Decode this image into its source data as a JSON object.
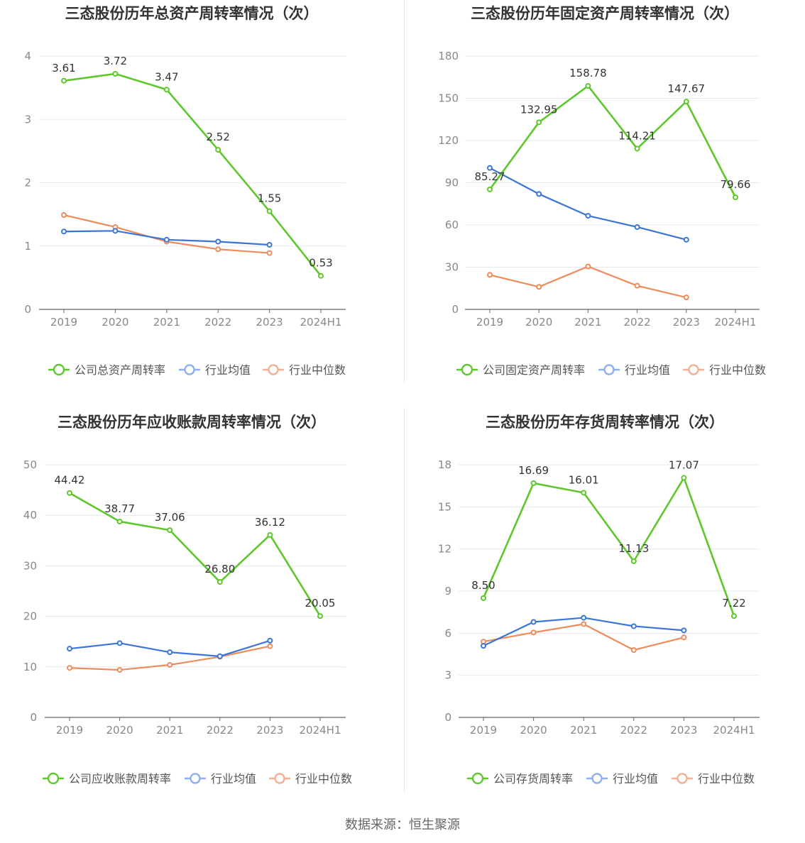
{
  "source_text": "数据来源：恒生聚源",
  "colors": {
    "company": "#5ec72b",
    "avg": "#3a75d9",
    "median": "#ef8a5a",
    "grid": "#e6e8ef",
    "axis": "#666666",
    "tick": "#888888",
    "legend_avg": "#8fb0ee",
    "legend_median": "#f4b094"
  },
  "chart_data": [
    {
      "type": "line",
      "title": "三态股份历年总资产周转率情况（次）",
      "categories": [
        "2019",
        "2020",
        "2021",
        "2022",
        "2023",
        "2024H1"
      ],
      "ylim": [
        0,
        4
      ],
      "yticks": [
        0,
        1,
        2,
        3,
        4
      ],
      "ytick_labels": [
        "0",
        "1",
        "2",
        "3",
        "4"
      ],
      "series": [
        {
          "name": "公司总资产周转率",
          "values": [
            3.61,
            3.72,
            3.47,
            2.52,
            1.55,
            0.53
          ],
          "labels": [
            "3.61",
            "3.72",
            "3.47",
            "2.52",
            "1.55",
            "0.53"
          ]
        },
        {
          "name": "行业均值",
          "values": [
            1.23,
            1.24,
            1.1,
            1.07,
            1.02,
            null
          ]
        },
        {
          "name": "行业中位数",
          "values": [
            1.49,
            1.3,
            1.07,
            0.95,
            0.89,
            null
          ]
        }
      ]
    },
    {
      "type": "line",
      "title": "三态股份历年固定资产周转率情况（次）",
      "categories": [
        "2019",
        "2020",
        "2021",
        "2022",
        "2023",
        "2024H1"
      ],
      "ylim": [
        0,
        180
      ],
      "yticks": [
        0,
        30,
        60,
        90,
        120,
        150,
        180
      ],
      "ytick_labels": [
        "0",
        "30",
        "60",
        "90",
        "120",
        "150",
        "180"
      ],
      "series": [
        {
          "name": "公司固定资产周转率",
          "values": [
            85.27,
            132.95,
            158.78,
            114.21,
            147.67,
            79.66
          ],
          "labels": [
            "85.27",
            "132.95",
            "158.78",
            "114.21",
            "147.67",
            "79.66"
          ]
        },
        {
          "name": "行业均值",
          "values": [
            100.5,
            82,
            66.5,
            58.5,
            49.5,
            null
          ]
        },
        {
          "name": "行业中位数",
          "values": [
            24.5,
            16,
            30.5,
            16.8,
            8.5,
            null
          ]
        }
      ]
    },
    {
      "type": "line",
      "title": "三态股份历年应收账款周转率情况（次）",
      "categories": [
        "2019",
        "2020",
        "2021",
        "2022",
        "2023",
        "2024H1"
      ],
      "ylim": [
        0,
        50
      ],
      "yticks": [
        0,
        10,
        20,
        30,
        40,
        50
      ],
      "ytick_labels": [
        "0",
        "10",
        "20",
        "30",
        "40",
        "50"
      ],
      "series": [
        {
          "name": "公司应收账款周转率",
          "values": [
            44.42,
            38.77,
            37.06,
            26.8,
            36.12,
            20.05
          ],
          "labels": [
            "44.42",
            "38.77",
            "37.06",
            "26.80",
            "36.12",
            "20.05"
          ]
        },
        {
          "name": "行业均值",
          "values": [
            13.6,
            14.7,
            12.9,
            12.1,
            15.2,
            null
          ]
        },
        {
          "name": "行业中位数",
          "values": [
            9.8,
            9.4,
            10.4,
            12.0,
            14.1,
            null
          ]
        }
      ]
    },
    {
      "type": "line",
      "title": "三态股份历年存货周转率情况（次）",
      "categories": [
        "2019",
        "2020",
        "2021",
        "2022",
        "2023",
        "2024H1"
      ],
      "ylim": [
        0,
        18
      ],
      "yticks": [
        0,
        3,
        6,
        9,
        12,
        15,
        18
      ],
      "ytick_labels": [
        "0",
        "3",
        "6",
        "9",
        "12",
        "15",
        "18"
      ],
      "series": [
        {
          "name": "公司存货周转率",
          "values": [
            8.5,
            16.69,
            16.01,
            11.13,
            17.07,
            7.22
          ],
          "labels": [
            "8.50",
            "16.69",
            "16.01",
            "11.13",
            "17.07",
            "7.22"
          ]
        },
        {
          "name": "行业均值",
          "values": [
            5.1,
            6.8,
            7.1,
            6.5,
            6.2,
            null
          ]
        },
        {
          "name": "行业中位数",
          "values": [
            5.4,
            6.05,
            6.65,
            4.8,
            5.7,
            null
          ]
        }
      ]
    }
  ]
}
